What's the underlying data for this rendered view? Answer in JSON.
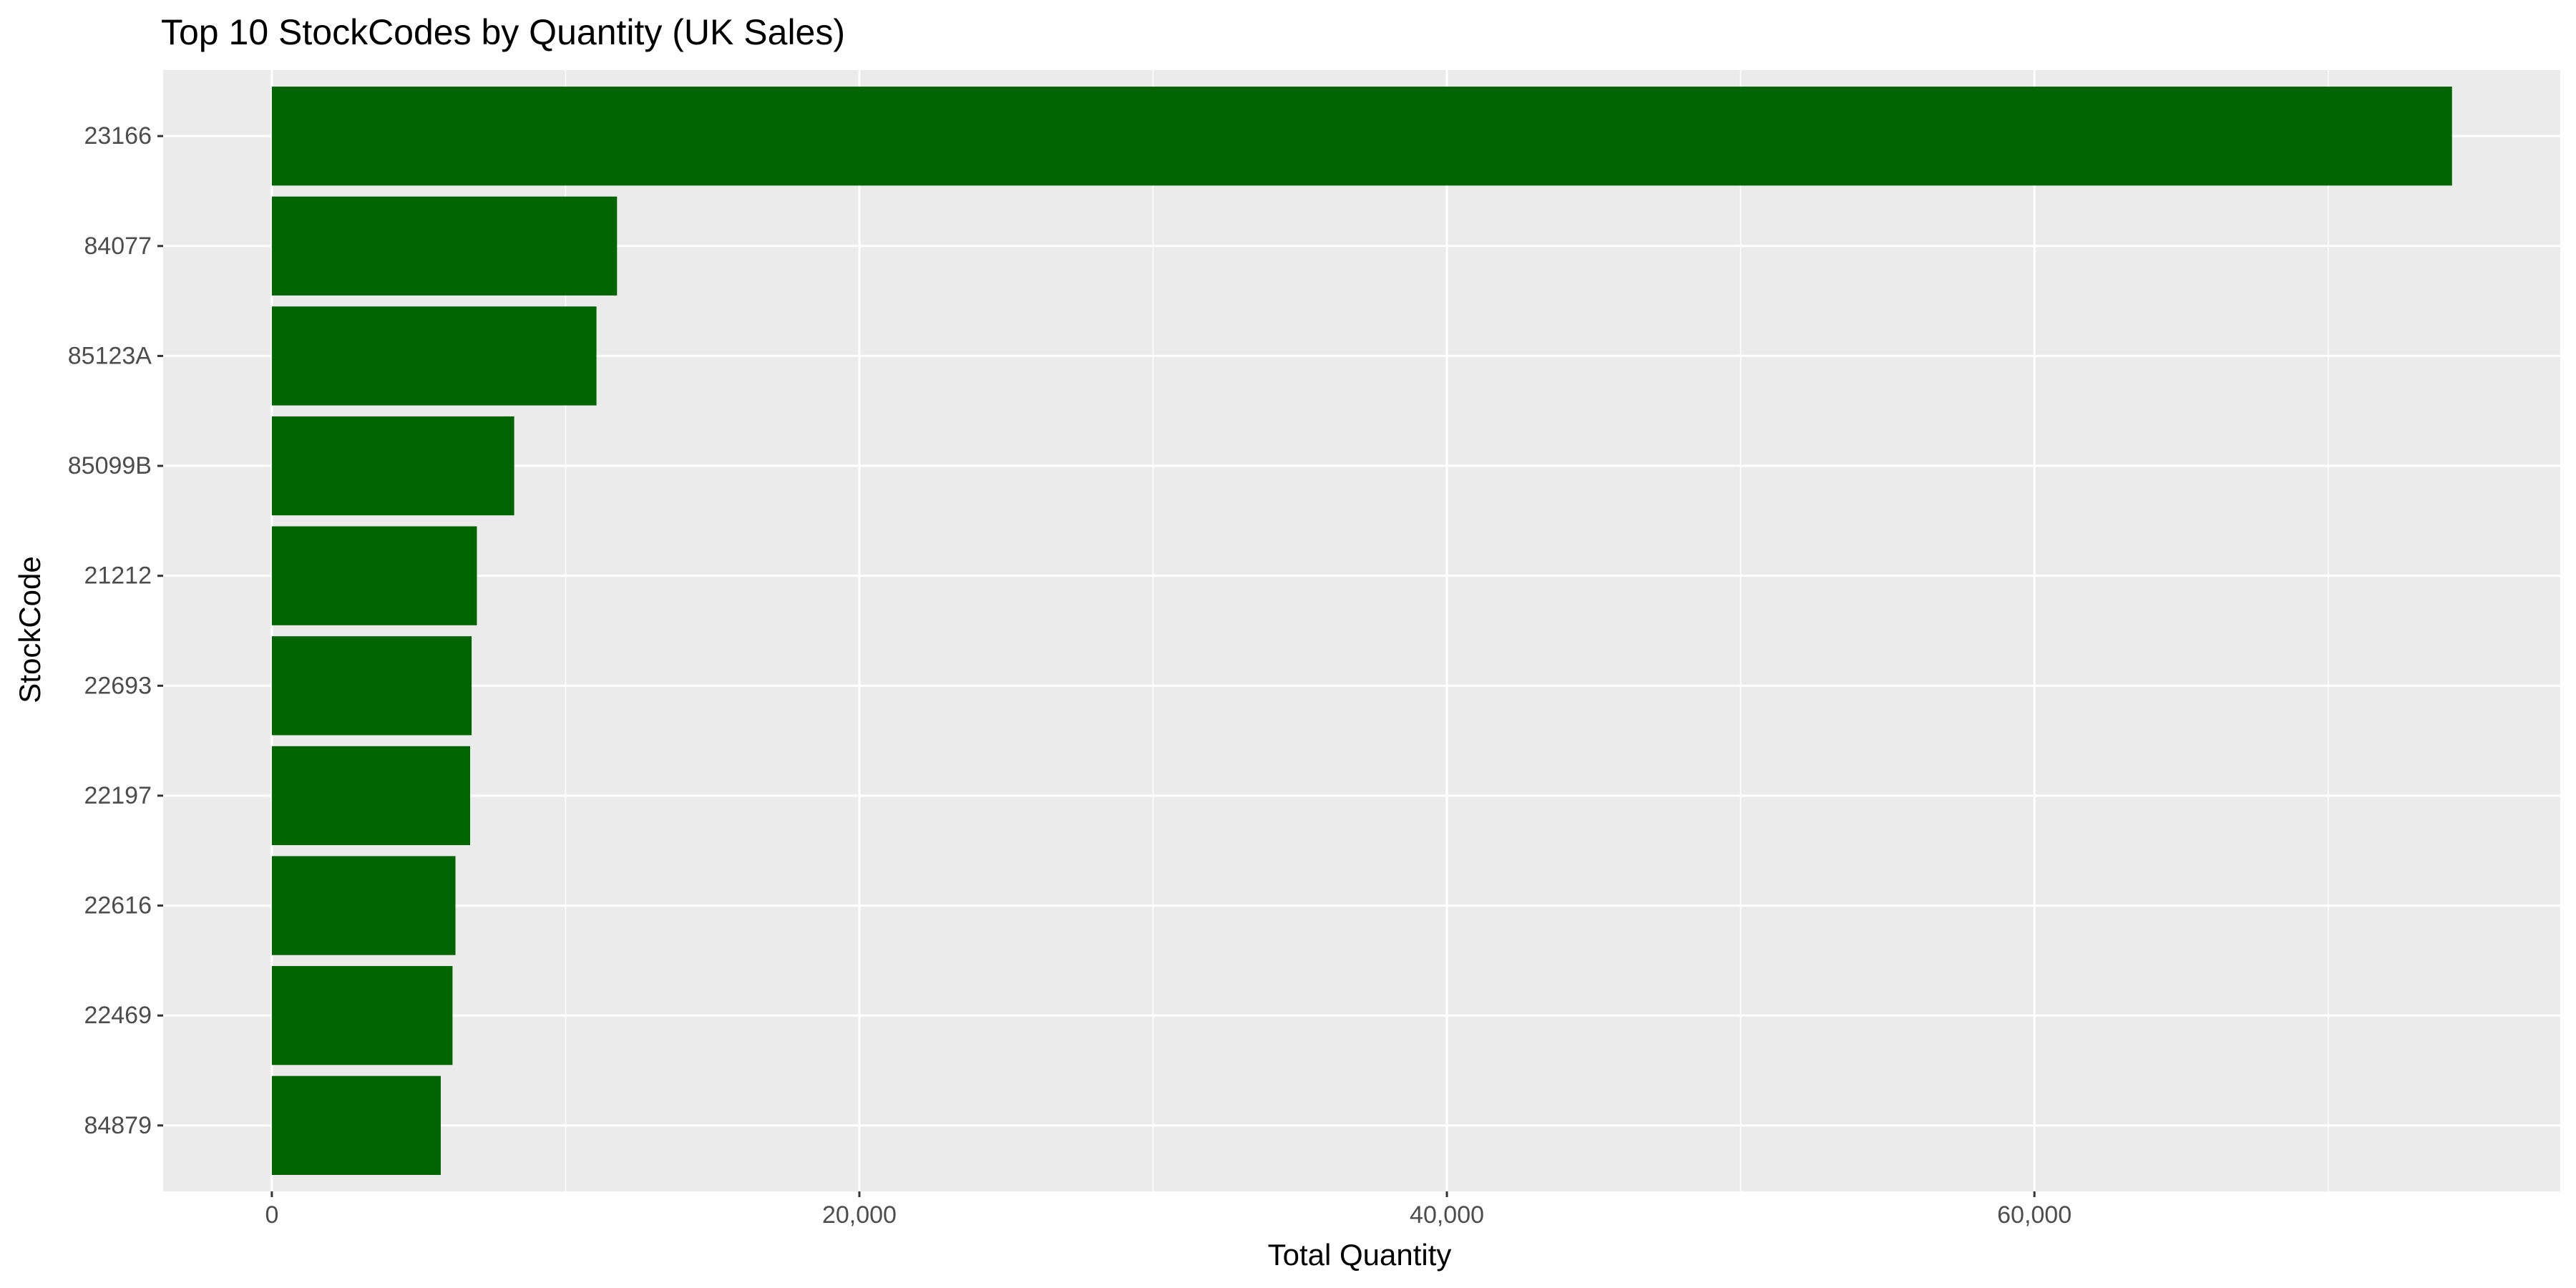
{
  "chart_data": {
    "type": "bar",
    "orientation": "horizontal",
    "title": "Top 10 StockCodes by Quantity (UK Sales)",
    "xlabel": "Total Quantity",
    "ylabel": "StockCode",
    "categories": [
      "23166",
      "84077",
      "85123A",
      "85099B",
      "21212",
      "22693",
      "22197",
      "22616",
      "22469",
      "84879"
    ],
    "values": [
      74215,
      11750,
      11050,
      8250,
      6980,
      6800,
      6750,
      6250,
      6150,
      5750
    ],
    "xlim": [
      -3700,
      77900
    ],
    "xticks": [
      0,
      20000,
      40000,
      60000
    ],
    "xtick_labels": [
      "0",
      "20,000",
      "40,000",
      "60,000"
    ],
    "grid": true,
    "bar_color": "#006400",
    "panel_color": "#EBEBEB",
    "grid_color": "#FFFFFF"
  }
}
